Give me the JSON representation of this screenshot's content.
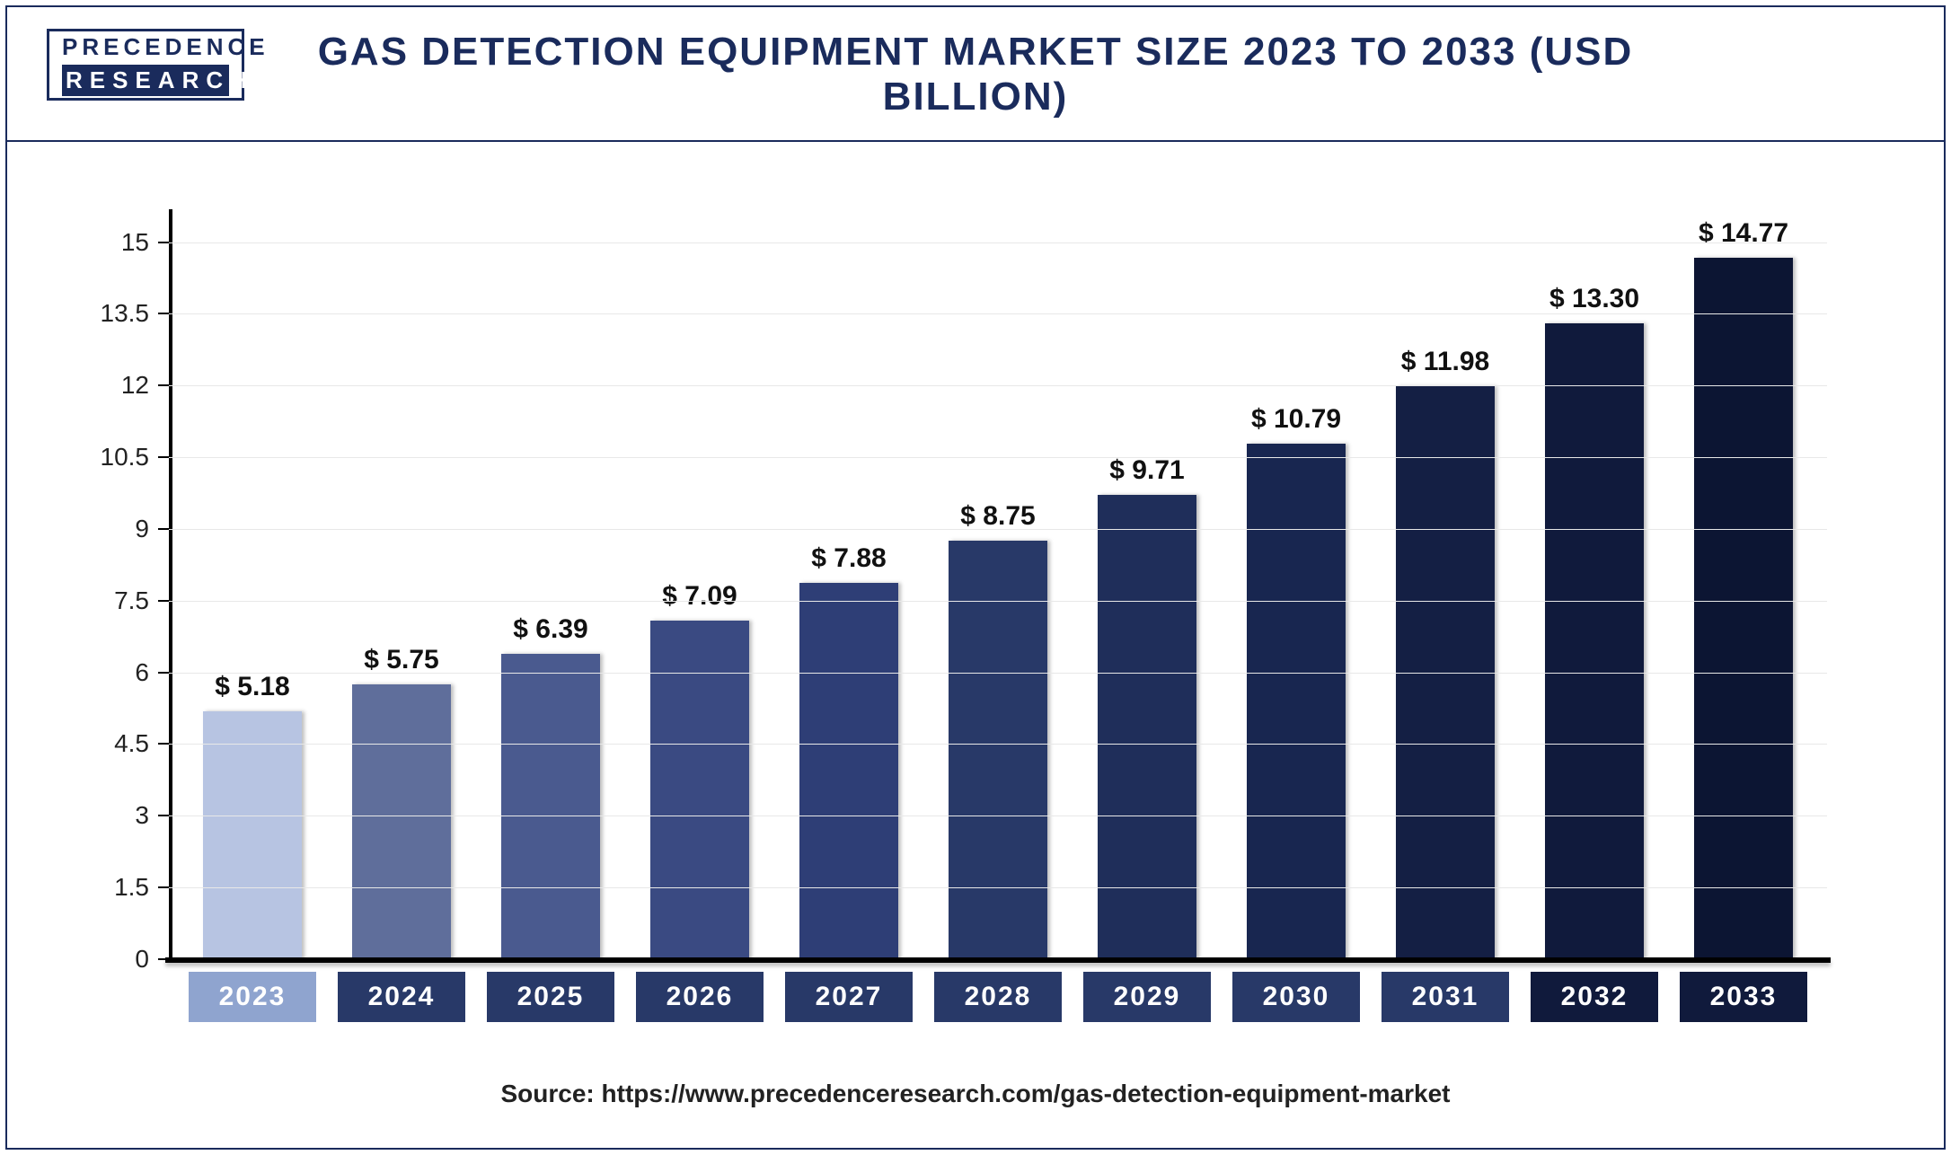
{
  "logo": {
    "line1": "PRECEDENCE",
    "line2": "RESEARCH"
  },
  "chart": {
    "type": "bar",
    "title": "GAS DETECTION EQUIPMENT MARKET SIZE 2023 TO 2033 (USD BILLION)",
    "title_fontsize": 44,
    "title_color": "#1a2b5c",
    "value_prefix": "$ ",
    "value_fontsize": 30,
    "categories": [
      "2023",
      "2024",
      "2025",
      "2026",
      "2027",
      "2028",
      "2029",
      "2030",
      "2031",
      "2032",
      "2033"
    ],
    "values": [
      5.18,
      5.75,
      6.39,
      7.09,
      7.88,
      8.75,
      9.71,
      10.79,
      11.98,
      13.3,
      14.77
    ],
    "bar_colors": [
      "#b7c4e2",
      "#5f6e9b",
      "#4a5a8f",
      "#3a4a82",
      "#2e3e76",
      "#283968",
      "#1f2e5a",
      "#182650",
      "#141f44",
      "#101a3c",
      "#0c1533"
    ],
    "x_label_bg_colors": [
      "#8fa4cf",
      "#283968",
      "#283968",
      "#283968",
      "#283968",
      "#283968",
      "#283968",
      "#283968",
      "#283968",
      "#101a3c",
      "#101a3c"
    ],
    "x_label_fontsize": 30,
    "ylim": [
      0,
      15.5
    ],
    "yticks": [
      0,
      1.5,
      3,
      4.5,
      6,
      7.5,
      9,
      10.5,
      12,
      13.5,
      15
    ],
    "ytick_fontsize": 28,
    "grid_color": "#e8e8e8",
    "background_color": "#ffffff",
    "axis_color": "#000000",
    "bar_width_ratio": 0.78
  },
  "source": {
    "label": "Source: https://www.precedenceresearch.com/gas-detection-equipment-market",
    "fontsize": 28
  }
}
